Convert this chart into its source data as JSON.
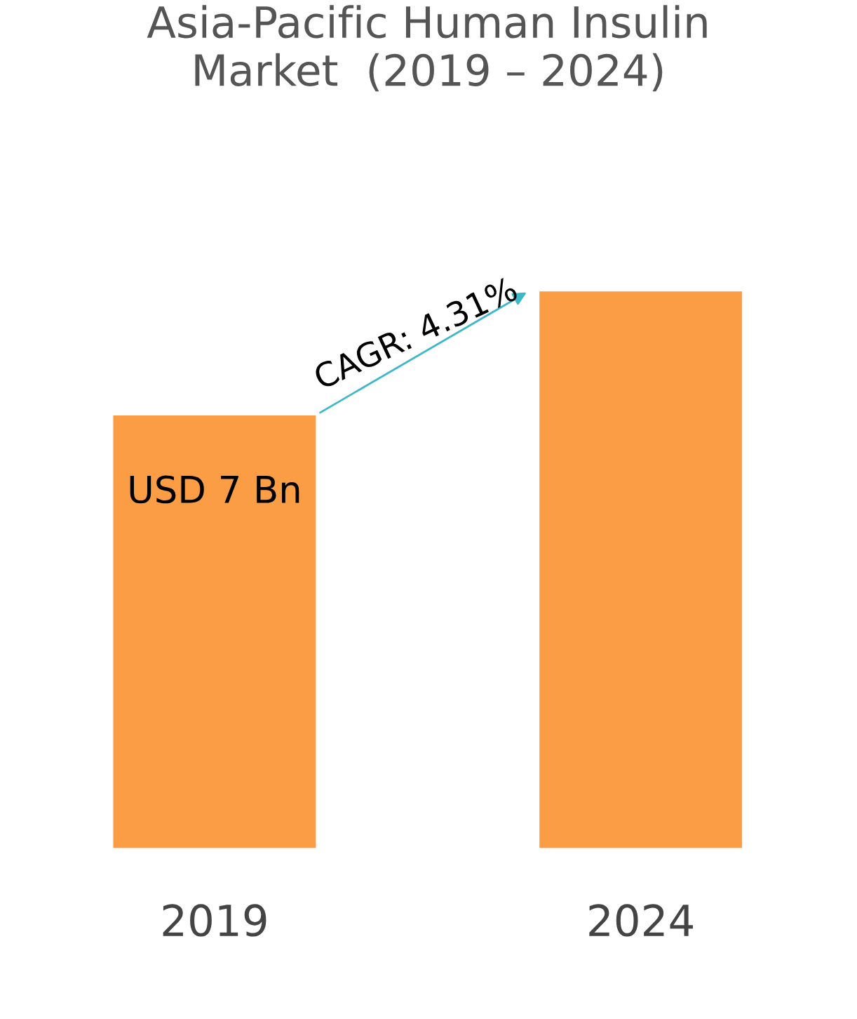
{
  "chart_data": {
    "type": "bar",
    "title": "Asia-Pacific Human Insulin\nMarket  (2019 – 2024)",
    "categories": [
      "2019",
      "2024"
    ],
    "values": [
      7,
      9.0
    ],
    "color": "#fb9d45",
    "value_labels": [
      "USD 7 Bn",
      null
    ],
    "annotations": [
      "CAGR: 4.31%"
    ],
    "grid": false,
    "legend": false
  }
}
